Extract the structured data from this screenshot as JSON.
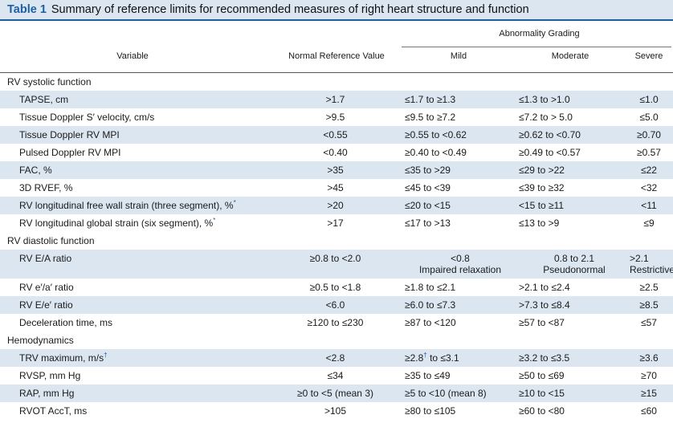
{
  "title": {
    "label": "Table 1",
    "text": "Summary of reference limits for recommended measures of right heart structure and function"
  },
  "header": {
    "variable": "Variable",
    "normal": "Normal Reference Value",
    "group": "Abnormality Grading",
    "mild": "Mild",
    "moderate": "Moderate",
    "severe": "Severe"
  },
  "sections": [
    {
      "title": "RV systolic function",
      "rows": [
        {
          "variable": "TAPSE, cm",
          "normal": ">1.7",
          "mild": "≤1.7 to ≥1.3",
          "moderate": "≤1.3 to >1.0",
          "severe": "≤1.0"
        },
        {
          "variable": "Tissue Doppler S′ velocity, cm/s",
          "normal": ">9.5",
          "mild": "≤9.5 to ≥7.2",
          "moderate": "≤7.2 to > 5.0",
          "severe": "≤5.0"
        },
        {
          "variable": "Tissue Doppler RV MPI",
          "normal": "<0.55",
          "mild": "≥0.55 to <0.62",
          "moderate": "≥0.62 to <0.70",
          "severe": "≥0.70"
        },
        {
          "variable": "Pulsed Doppler RV MPI",
          "normal": "<0.40",
          "mild": "≥0.40 to <0.49",
          "moderate": "≥0.49 to <0.57",
          "severe": "≥0.57"
        },
        {
          "variable": "FAC, %",
          "normal": ">35",
          "mild": "≤35 to >29",
          "moderate": "≤29 to >22",
          "severe": "≤22"
        },
        {
          "variable": "3D RVEF, %",
          "normal": ">45",
          "mild": "≤45 to <39",
          "moderate": "≤39 to ≥32",
          "severe": "<32"
        },
        {
          "variable": "RV longitudinal free wall strain (three segment), %",
          "var_sup": "*",
          "normal": ">20",
          "mild": "≤20 to <15",
          "moderate": "<15 to ≥11",
          "severe": "<11"
        },
        {
          "variable": "RV longitudinal global strain (six segment), %",
          "var_sup": "*",
          "normal": ">17",
          "mild": "≤17 to >13",
          "moderate": "≤13 to >9",
          "severe": "≤9"
        }
      ]
    },
    {
      "title": "RV diastolic function",
      "rows": [
        {
          "variable": "RV E/A ratio",
          "normal": "≥0.8 to <2.0",
          "mild": "<0.8",
          "mild_sub": "Impaired relaxation",
          "moderate": "0.8 to 2.1",
          "moderate_sub": "Pseudonormal",
          "severe": ">2.1",
          "severe_sub": "Restrictive"
        },
        {
          "variable": "RV e′/a′ ratio",
          "normal": "≥0.5 to <1.8",
          "mild": "≥1.8 to ≤2.1",
          "moderate": ">2.1 to ≤2.4",
          "severe": "≥2.5"
        },
        {
          "variable": "RV E/e′ ratio",
          "normal": "<6.0",
          "mild": "≥6.0 to ≤7.3",
          "moderate": ">7.3 to ≤8.4",
          "severe": "≥8.5"
        },
        {
          "variable": "Deceleration time, ms",
          "normal": "≥120 to ≤230",
          "mild": "≥87 to <120",
          "moderate": "≥57 to <87",
          "severe": "≤57"
        }
      ]
    },
    {
      "title": "Hemodynamics",
      "rows": [
        {
          "variable": "TRV maximum, m/s",
          "var_sup": "†",
          "normal": "<2.8",
          "mild": "≥2.8",
          "mild_sup": "†",
          "mild_rest": " to ≤3.1",
          "moderate": "≥3.2 to ≤3.5",
          "severe": "≥3.6"
        },
        {
          "variable": "RVSP, mm Hg",
          "normal": "≤34",
          "mild": "≥35 to ≤49",
          "moderate": "≥50 to ≤69",
          "severe": "≥70"
        },
        {
          "variable": "RAP, mm Hg",
          "normal": "≥0 to <5 (mean 3)",
          "mild": "≥5 to <10 (mean 8)",
          "moderate": "≥10 to <15",
          "severe": "≥15"
        },
        {
          "variable": "RVOT AccT, ms",
          "normal": ">105",
          "mild": "≥80 to ≤105",
          "moderate": "≥60 to <80",
          "severe": "≤60"
        }
      ]
    }
  ]
}
